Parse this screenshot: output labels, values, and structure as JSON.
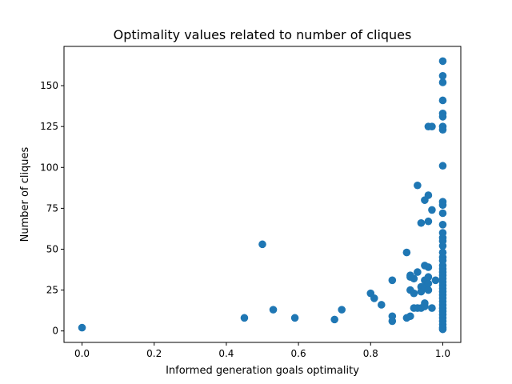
{
  "chart_data": {
    "type": "scatter",
    "title": "Optimality values related to number of cliques",
    "xlabel": "Informed generation goals optimality",
    "ylabel": "Number of cliques",
    "xlim": [
      -0.05,
      1.05
    ],
    "ylim": [
      -7,
      174
    ],
    "xticks": [
      0.0,
      0.2,
      0.4,
      0.6,
      0.8,
      1.0
    ],
    "xtick_labels": [
      "0.0",
      "0.2",
      "0.4",
      "0.6",
      "0.8",
      "1.0"
    ],
    "yticks": [
      0,
      25,
      50,
      75,
      100,
      125,
      150
    ],
    "ytick_labels": [
      "0",
      "25",
      "50",
      "75",
      "100",
      "125",
      "150"
    ],
    "grid": false,
    "marker_color": "#1f77b4",
    "series": [
      {
        "points": [
          [
            0.0,
            2
          ],
          [
            0.45,
            8
          ],
          [
            0.5,
            53
          ],
          [
            0.53,
            13
          ],
          [
            0.59,
            8
          ],
          [
            0.7,
            7
          ],
          [
            0.72,
            13
          ],
          [
            0.8,
            23
          ],
          [
            0.81,
            20
          ],
          [
            0.83,
            16
          ],
          [
            0.86,
            31
          ],
          [
            0.86,
            9
          ],
          [
            0.86,
            6
          ],
          [
            0.9,
            48
          ],
          [
            0.9,
            8
          ],
          [
            0.91,
            34
          ],
          [
            0.91,
            33
          ],
          [
            0.91,
            25
          ],
          [
            0.91,
            9
          ],
          [
            0.92,
            32
          ],
          [
            0.92,
            23
          ],
          [
            0.92,
            14
          ],
          [
            0.93,
            89
          ],
          [
            0.93,
            36
          ],
          [
            0.93,
            14
          ],
          [
            0.94,
            66
          ],
          [
            0.94,
            27
          ],
          [
            0.94,
            24
          ],
          [
            0.94,
            14
          ],
          [
            0.95,
            80
          ],
          [
            0.95,
            40
          ],
          [
            0.95,
            31
          ],
          [
            0.95,
            27
          ],
          [
            0.95,
            17
          ],
          [
            0.95,
            15
          ],
          [
            0.96,
            125
          ],
          [
            0.96,
            83
          ],
          [
            0.96,
            67
          ],
          [
            0.96,
            39
          ],
          [
            0.96,
            33
          ],
          [
            0.96,
            29
          ],
          [
            0.96,
            25
          ],
          [
            0.97,
            125
          ],
          [
            0.97,
            74
          ],
          [
            0.97,
            14
          ],
          [
            0.98,
            31
          ],
          [
            1.0,
            165
          ],
          [
            1.0,
            156
          ],
          [
            1.0,
            152
          ],
          [
            1.0,
            141
          ],
          [
            1.0,
            133
          ],
          [
            1.0,
            131
          ],
          [
            1.0,
            125
          ],
          [
            1.0,
            123
          ],
          [
            1.0,
            101
          ],
          [
            1.0,
            79
          ],
          [
            1.0,
            77
          ],
          [
            1.0,
            72
          ],
          [
            1.0,
            65
          ],
          [
            1.0,
            60
          ],
          [
            1.0,
            57
          ],
          [
            1.0,
            55
          ],
          [
            1.0,
            52
          ],
          [
            1.0,
            48
          ],
          [
            1.0,
            45
          ],
          [
            1.0,
            43
          ],
          [
            1.0,
            40
          ],
          [
            1.0,
            38
          ],
          [
            1.0,
            36
          ],
          [
            1.0,
            34
          ],
          [
            1.0,
            32
          ],
          [
            1.0,
            30
          ],
          [
            1.0,
            28
          ],
          [
            1.0,
            26
          ],
          [
            1.0,
            24
          ],
          [
            1.0,
            22
          ],
          [
            1.0,
            20
          ],
          [
            1.0,
            18
          ],
          [
            1.0,
            16
          ],
          [
            1.0,
            14
          ],
          [
            1.0,
            12
          ],
          [
            1.0,
            10
          ],
          [
            1.0,
            8
          ],
          [
            1.0,
            6
          ],
          [
            1.0,
            4
          ],
          [
            1.0,
            2
          ],
          [
            1.0,
            1
          ]
        ]
      }
    ]
  }
}
